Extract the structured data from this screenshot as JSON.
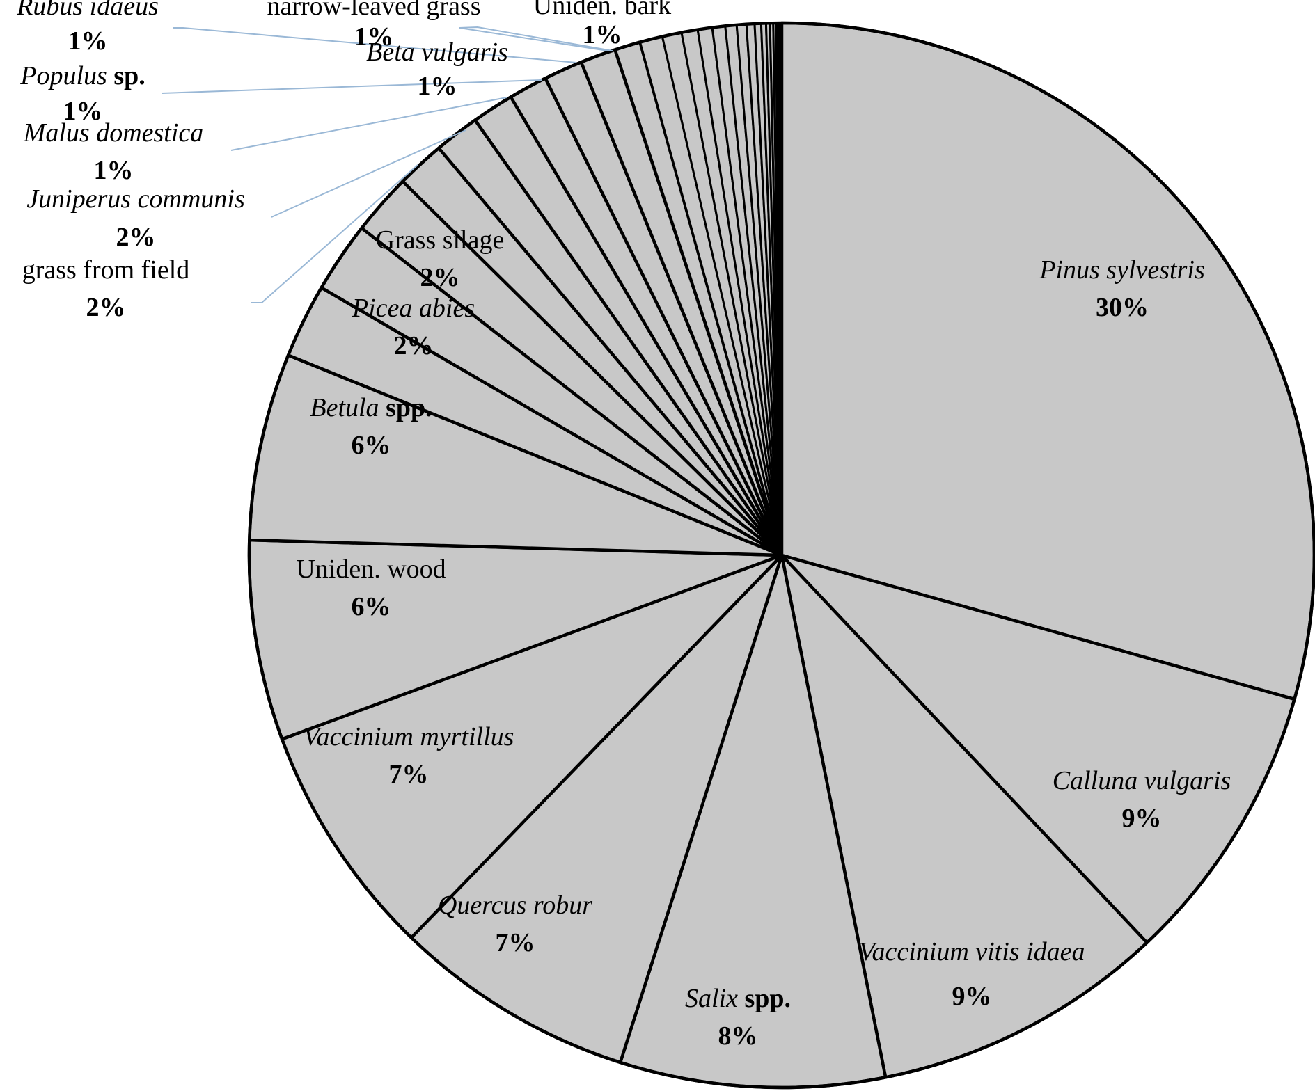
{
  "chart_data": {
    "type": "pie",
    "title": "",
    "start_angle_deg": 0,
    "direction": "clockwise",
    "colors": {
      "slice_fill": "#c8c8c8",
      "slice_stroke": "#000000",
      "leader_line": "#9ab8d6"
    },
    "slices": [
      {
        "label": "Pinus sylvestris",
        "label_parts": [
          {
            "text": "Pinus sylvestris",
            "style": "italic"
          }
        ],
        "percent_label": "30%",
        "value": 30.0
      },
      {
        "label": "Calluna vulgaris",
        "label_parts": [
          {
            "text": "Calluna vulgaris",
            "style": "italic"
          }
        ],
        "percent_label": "9%",
        "value": 8.8
      },
      {
        "label": "Vaccinium vitis idaea",
        "label_parts": [
          {
            "text": "Vaccinium vitis idaea",
            "style": "italic"
          }
        ],
        "percent_label": "9%",
        "value": 9.1
      },
      {
        "label": "Salix spp.",
        "label_parts": [
          {
            "text": "Salix",
            "style": "italic"
          },
          {
            "text": " spp.",
            "style": "bold"
          }
        ],
        "percent_label": "8%",
        "value": 8.2
      },
      {
        "label": "Quercus robur",
        "label_parts": [
          {
            "text": "Quercus robur",
            "style": "italic"
          }
        ],
        "percent_label": "7%",
        "value": 7.5
      },
      {
        "label": "Vaccinium myrtillus",
        "label_parts": [
          {
            "text": "Vaccinium myrtillus",
            "style": "italic"
          }
        ],
        "percent_label": "7%",
        "value": 7.3
      },
      {
        "label": "Uniden. wood",
        "label_parts": [
          {
            "text": "Uniden. wood",
            "style": "normal"
          }
        ],
        "percent_label": "6%",
        "value": 6.2
      },
      {
        "label": "Betula spp.",
        "label_parts": [
          {
            "text": "Betula",
            "style": "italic"
          },
          {
            "text": " spp.",
            "style": "bold"
          }
        ],
        "percent_label": "6%",
        "value": 5.8
      },
      {
        "label": "Picea abies",
        "label_parts": [
          {
            "text": "Picea abies",
            "style": "italic"
          }
        ],
        "percent_label": "2%",
        "value": 2.3
      },
      {
        "label": "Grass silage",
        "label_parts": [
          {
            "text": "Grass silage",
            "style": "normal"
          }
        ],
        "percent_label": "2%",
        "value": 2.2
      },
      {
        "label": "grass from field",
        "label_parts": [
          {
            "text": "grass from field",
            "style": "normal"
          }
        ],
        "percent_label": "2%",
        "value": 1.9
      },
      {
        "label": "Juniperus communis",
        "label_parts": [
          {
            "text": "Juniperus communis",
            "style": "italic"
          }
        ],
        "percent_label": "2%",
        "value": 1.5
      },
      {
        "label": "Malus domestica",
        "label_parts": [
          {
            "text": "Malus domestica",
            "style": "italic"
          }
        ],
        "percent_label": "1%",
        "value": 1.4
      },
      {
        "label": "Populus sp.",
        "label_parts": [
          {
            "text": "Populus",
            "style": "italic"
          },
          {
            "text": " sp.",
            "style": "bold"
          }
        ],
        "percent_label": "1%",
        "value": 1.3
      },
      {
        "label": "Beta vulgaris",
        "label_parts": [
          {
            "text": "Beta vulgaris",
            "style": "italic"
          }
        ],
        "percent_label": "1%",
        "value": 1.2
      },
      {
        "label": "Rubus idaeus",
        "label_parts": [
          {
            "text": "Rubus idaeus",
            "style": "italic"
          }
        ],
        "percent_label": "1%",
        "value": 1.2
      },
      {
        "label": "narrow-leaved grass",
        "label_parts": [
          {
            "text": "narrow-leaved grass",
            "style": "normal"
          }
        ],
        "percent_label": "1%",
        "value": 1.1
      },
      {
        "label": "Uniden. bark",
        "label_parts": [
          {
            "text": "Uniden. bark",
            "style": "normal"
          }
        ],
        "percent_label": "1%",
        "value": 0.8
      },
      {
        "label": "",
        "value": 0.7
      },
      {
        "label": "",
        "value": 0.6
      },
      {
        "label": "",
        "value": 0.5
      },
      {
        "label": "",
        "value": 0.45
      },
      {
        "label": "",
        "value": 0.4
      },
      {
        "label": "",
        "value": 0.35
      },
      {
        "label": "",
        "value": 0.3
      },
      {
        "label": "",
        "value": 0.25
      },
      {
        "label": "",
        "value": 0.2
      },
      {
        "label": "",
        "value": 0.15
      },
      {
        "label": "",
        "value": 0.12
      },
      {
        "label": "",
        "value": 0.1
      },
      {
        "label": "",
        "value": 0.08
      },
      {
        "label": "",
        "value": 0.06
      },
      {
        "label": "",
        "value": 0.05
      },
      {
        "label": "",
        "value": 0.04
      },
      {
        "label": "",
        "value": 0.03
      }
    ]
  }
}
